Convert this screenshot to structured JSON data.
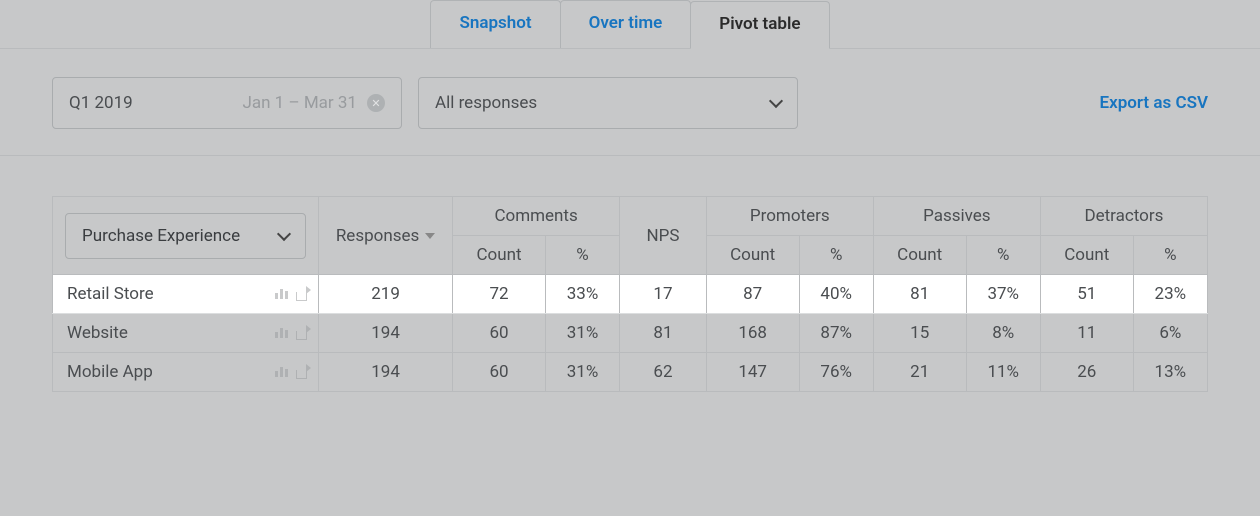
{
  "tabs": {
    "snapshot": "Snapshot",
    "overtime": "Over time",
    "pivot": "Pivot table",
    "active": "pivot"
  },
  "date_selector": {
    "label": "Q1 2019",
    "range": "Jan 1 – Mar 31"
  },
  "filter_selector": {
    "label": "All responses"
  },
  "export_label": "Export as CSV",
  "table": {
    "row_header_label": "Purchase Experience",
    "columns": {
      "responses": "Responses",
      "comments": "Comments",
      "nps": "NPS",
      "promoters": "Promoters",
      "passives": "Passives",
      "detractors": "Detractors",
      "sub_count": "Count",
      "sub_pct": "%"
    },
    "rows": [
      {
        "name": "Retail Store",
        "responses": "219",
        "comments_count": "72",
        "comments_pct": "33%",
        "nps": "17",
        "promoters_count": "87",
        "promoters_pct": "40%",
        "passives_count": "81",
        "passives_pct": "37%",
        "detractors_count": "51",
        "detractors_pct": "23%",
        "highlighted": true
      },
      {
        "name": "Website",
        "responses": "194",
        "comments_count": "60",
        "comments_pct": "31%",
        "nps": "81",
        "promoters_count": "168",
        "promoters_pct": "87%",
        "passives_count": "15",
        "passives_pct": "8%",
        "detractors_count": "11",
        "detractors_pct": "6%",
        "highlighted": false
      },
      {
        "name": "Mobile App",
        "responses": "194",
        "comments_count": "60",
        "comments_pct": "31%",
        "nps": "62",
        "promoters_count": "147",
        "promoters_pct": "76%",
        "passives_count": "21",
        "passives_pct": "11%",
        "detractors_count": "26",
        "detractors_pct": "13%",
        "highlighted": false
      }
    ]
  },
  "colors": {
    "overlay_bg": "#c7c8c9",
    "highlight_bg": "#ffffff",
    "border": "#b9bbbd",
    "link": "#1875c0",
    "text": "#4a4d50",
    "muted": "#989b9e"
  }
}
